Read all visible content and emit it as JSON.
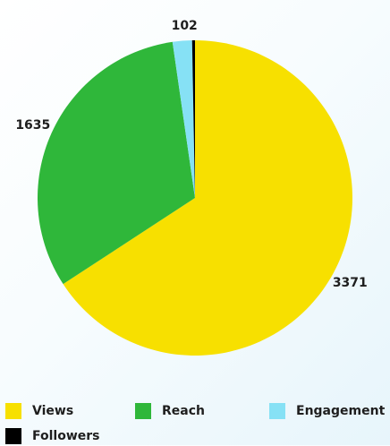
{
  "chart_data": {
    "type": "pie",
    "title": "",
    "slices": [
      {
        "label": "Views",
        "value": 3371,
        "data_label": "3371",
        "color": "#f7e000"
      },
      {
        "label": "Reach",
        "value": 1635,
        "data_label": "1635",
        "color": "#2fb73a"
      },
      {
        "label": "Engagement",
        "value": 102,
        "data_label": "102",
        "color": "#86e1f5"
      },
      {
        "label": "Followers",
        "value": 15,
        "data_label": "",
        "color": "#000000"
      }
    ],
    "start_angle": "12 o'clock",
    "direction": "clockwise",
    "legend_position": "bottom"
  }
}
